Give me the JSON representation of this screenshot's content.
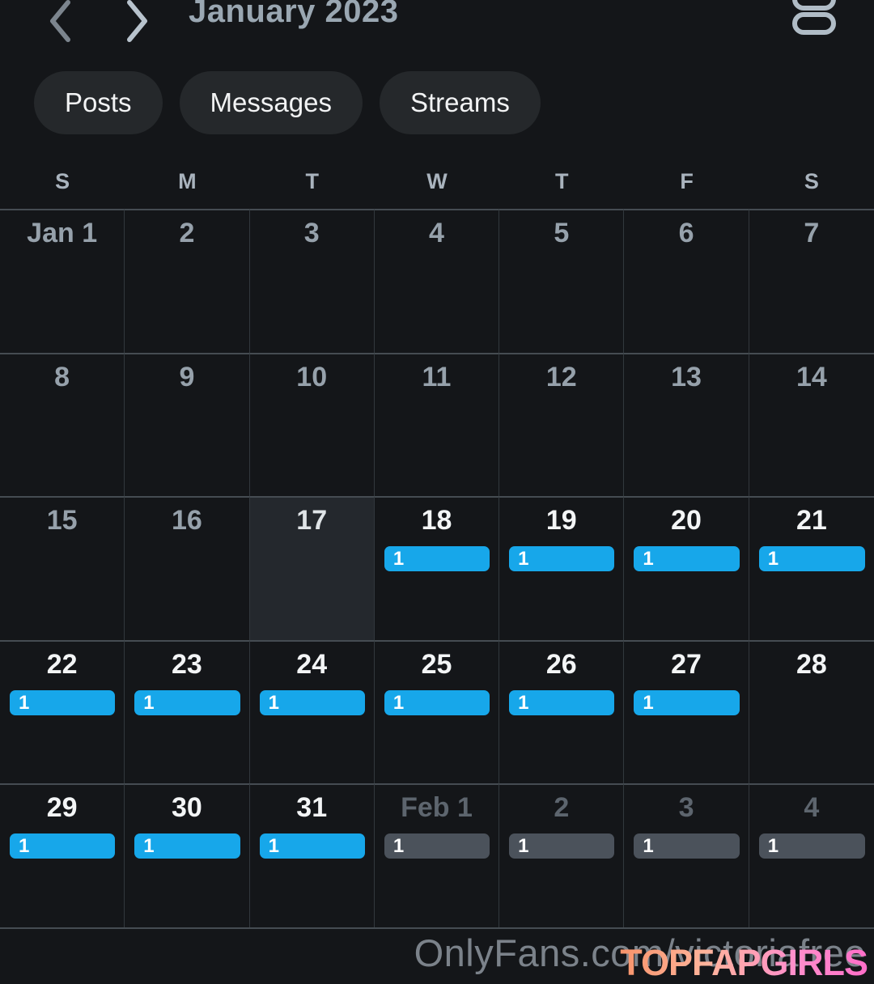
{
  "header": {
    "title": "January 2023",
    "prev_icon": "chevron-left",
    "next_icon": "chevron-right",
    "view_toggle_icon": "agenda-list"
  },
  "filters": [
    {
      "label": "Posts"
    },
    {
      "label": "Messages"
    },
    {
      "label": "Streams"
    }
  ],
  "weekdays": [
    "S",
    "M",
    "T",
    "W",
    "T",
    "F",
    "S"
  ],
  "calendar": {
    "month": "January 2023",
    "weeks": [
      [
        {
          "label": "Jan 1",
          "state": "past",
          "badge": null
        },
        {
          "label": "2",
          "state": "past",
          "badge": null
        },
        {
          "label": "3",
          "state": "past",
          "badge": null
        },
        {
          "label": "4",
          "state": "past",
          "badge": null
        },
        {
          "label": "5",
          "state": "past",
          "badge": null
        },
        {
          "label": "6",
          "state": "past",
          "badge": null
        },
        {
          "label": "7",
          "state": "past",
          "badge": null
        }
      ],
      [
        {
          "label": "8",
          "state": "past",
          "badge": null
        },
        {
          "label": "9",
          "state": "past",
          "badge": null
        },
        {
          "label": "10",
          "state": "past",
          "badge": null
        },
        {
          "label": "11",
          "state": "past",
          "badge": null
        },
        {
          "label": "12",
          "state": "past",
          "badge": null
        },
        {
          "label": "13",
          "state": "past",
          "badge": null
        },
        {
          "label": "14",
          "state": "past",
          "badge": null
        }
      ],
      [
        {
          "label": "15",
          "state": "past",
          "badge": null
        },
        {
          "label": "16",
          "state": "past",
          "badge": null
        },
        {
          "label": "17",
          "state": "today",
          "badge": null
        },
        {
          "label": "18",
          "state": "future",
          "badge": {
            "count": "1",
            "style": "blue"
          }
        },
        {
          "label": "19",
          "state": "future",
          "badge": {
            "count": "1",
            "style": "blue"
          }
        },
        {
          "label": "20",
          "state": "future",
          "badge": {
            "count": "1",
            "style": "blue"
          }
        },
        {
          "label": "21",
          "state": "future",
          "badge": {
            "count": "1",
            "style": "blue"
          }
        }
      ],
      [
        {
          "label": "22",
          "state": "future",
          "badge": {
            "count": "1",
            "style": "blue"
          }
        },
        {
          "label": "23",
          "state": "future",
          "badge": {
            "count": "1",
            "style": "blue"
          }
        },
        {
          "label": "24",
          "state": "future",
          "badge": {
            "count": "1",
            "style": "blue"
          }
        },
        {
          "label": "25",
          "state": "future",
          "badge": {
            "count": "1",
            "style": "blue"
          }
        },
        {
          "label": "26",
          "state": "future",
          "badge": {
            "count": "1",
            "style": "blue"
          }
        },
        {
          "label": "27",
          "state": "future",
          "badge": {
            "count": "1",
            "style": "blue"
          }
        },
        {
          "label": "28",
          "state": "future",
          "badge": null
        }
      ],
      [
        {
          "label": "29",
          "state": "future",
          "badge": {
            "count": "1",
            "style": "blue"
          }
        },
        {
          "label": "30",
          "state": "future",
          "badge": {
            "count": "1",
            "style": "blue"
          }
        },
        {
          "label": "31",
          "state": "future",
          "badge": {
            "count": "1",
            "style": "blue"
          }
        },
        {
          "label": "Feb 1",
          "state": "next",
          "badge": {
            "count": "1",
            "style": "gray"
          }
        },
        {
          "label": "2",
          "state": "next",
          "badge": {
            "count": "1",
            "style": "gray"
          }
        },
        {
          "label": "3",
          "state": "next",
          "badge": {
            "count": "1",
            "style": "gray"
          }
        },
        {
          "label": "4",
          "state": "next",
          "badge": {
            "count": "1",
            "style": "gray"
          }
        }
      ]
    ]
  },
  "colors": {
    "badge_blue": "#17a7ea",
    "badge_gray": "#4b525b",
    "today_cell_bg": "#24282d",
    "brand_gradient_start": "#f7936a",
    "brand_gradient_end": "#ff6ec9"
  },
  "footer": {
    "watermark": "OnlyFans.com/victoriafree",
    "brand": "TOPFAPGIRLS"
  }
}
